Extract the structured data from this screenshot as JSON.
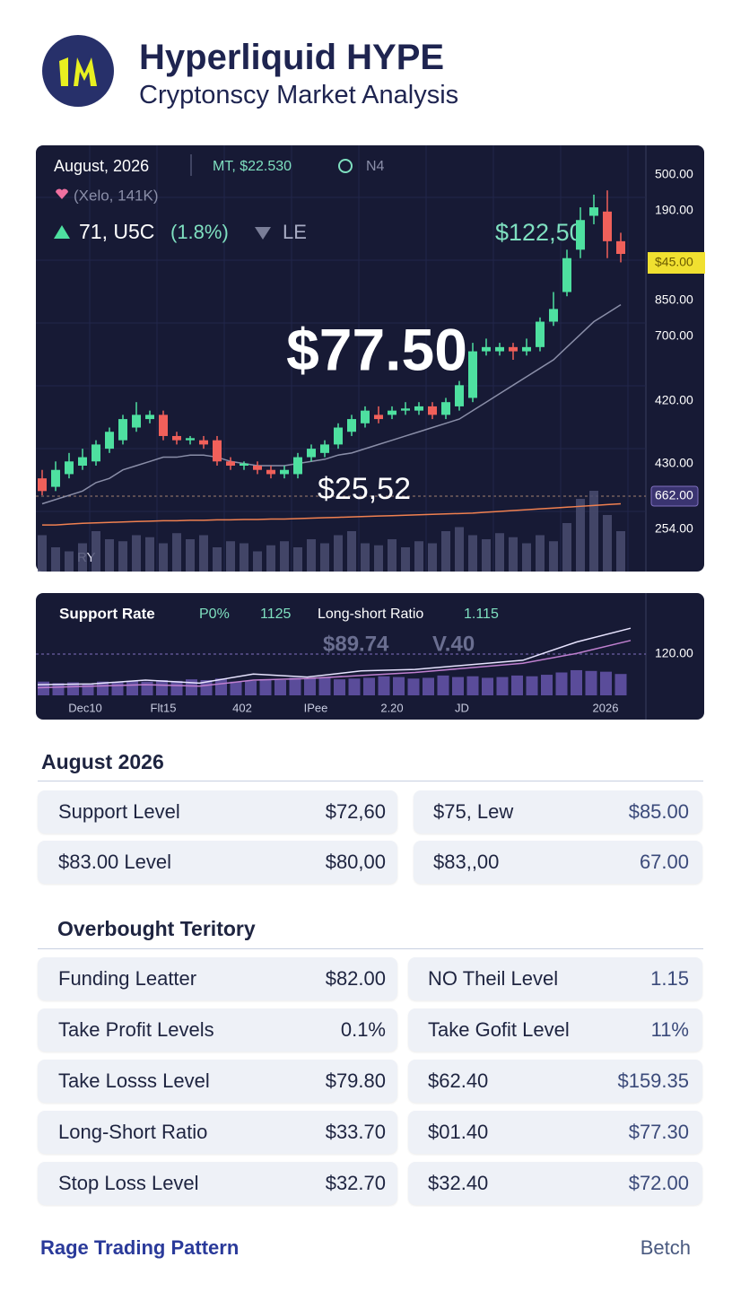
{
  "header": {
    "title": "Hyperliquid HYPE",
    "subtitle": "Cryptonscy Market Analysis"
  },
  "main_chart": {
    "type": "candlestick",
    "date": "August, 2026",
    "ticker": "MT, $22.530",
    "tag": "N4",
    "meta": "(Xelo, 141K)",
    "change": "71, U5C",
    "change_pct": "(1.8%)",
    "change_tag": "LE",
    "price_high": "$122,50",
    "price": "$77.50",
    "price_low": "$25,52",
    "corner": "RY",
    "axis_labels": [
      "500.00",
      "190.00",
      "$45.00",
      "850.00",
      "700.00",
      "420.00",
      "430.00",
      "662.00",
      "254.00"
    ],
    "up_color": "#4ee0a0",
    "down_color": "#f0605a",
    "ma_color": "#8a8ea8",
    "ma2_color": "#f08050",
    "volume_color": "#4a4e70",
    "ylim": [
      0,
      100
    ],
    "candles": [
      {
        "o": 22,
        "c": 19,
        "h": 24,
        "l": 18
      },
      {
        "o": 20,
        "c": 24,
        "h": 26,
        "l": 19
      },
      {
        "o": 23,
        "c": 26,
        "h": 28,
        "l": 22
      },
      {
        "o": 25,
        "c": 27,
        "h": 29,
        "l": 24
      },
      {
        "o": 26,
        "c": 30,
        "h": 31,
        "l": 25
      },
      {
        "o": 29,
        "c": 33,
        "h": 34,
        "l": 28
      },
      {
        "o": 31,
        "c": 36,
        "h": 37,
        "l": 30
      },
      {
        "o": 34,
        "c": 37,
        "h": 40,
        "l": 33
      },
      {
        "o": 36,
        "c": 37,
        "h": 38,
        "l": 35
      },
      {
        "o": 37,
        "c": 32,
        "h": 38,
        "l": 31
      },
      {
        "o": 32,
        "c": 31,
        "h": 33,
        "l": 30
      },
      {
        "o": 31,
        "c": 31.5,
        "h": 32,
        "l": 30
      },
      {
        "o": 31,
        "c": 30,
        "h": 32,
        "l": 29
      },
      {
        "o": 31,
        "c": 26,
        "h": 32,
        "l": 25
      },
      {
        "o": 26,
        "c": 25,
        "h": 27,
        "l": 24
      },
      {
        "o": 25,
        "c": 25.5,
        "h": 26,
        "l": 24
      },
      {
        "o": 25,
        "c": 24,
        "h": 26,
        "l": 23
      },
      {
        "o": 24,
        "c": 23,
        "h": 25,
        "l": 22
      },
      {
        "o": 23,
        "c": 24,
        "h": 25,
        "l": 22
      },
      {
        "o": 23,
        "c": 27,
        "h": 28,
        "l": 22
      },
      {
        "o": 27,
        "c": 29,
        "h": 30,
        "l": 26
      },
      {
        "o": 28,
        "c": 30,
        "h": 31,
        "l": 27
      },
      {
        "o": 30,
        "c": 34,
        "h": 35,
        "l": 29
      },
      {
        "o": 33,
        "c": 36,
        "h": 37,
        "l": 32
      },
      {
        "o": 35,
        "c": 38,
        "h": 39,
        "l": 34
      },
      {
        "o": 37,
        "c": 36,
        "h": 39,
        "l": 35
      },
      {
        "o": 37,
        "c": 38,
        "h": 39,
        "l": 36
      },
      {
        "o": 38,
        "c": 38.5,
        "h": 40,
        "l": 37
      },
      {
        "o": 38,
        "c": 39,
        "h": 40,
        "l": 37
      },
      {
        "o": 39,
        "c": 37,
        "h": 40,
        "l": 36
      },
      {
        "o": 37,
        "c": 40,
        "h": 41,
        "l": 36
      },
      {
        "o": 39,
        "c": 44,
        "h": 45,
        "l": 38
      },
      {
        "o": 41,
        "c": 52,
        "h": 54,
        "l": 40
      },
      {
        "o": 52,
        "c": 53,
        "h": 55,
        "l": 51
      },
      {
        "o": 52,
        "c": 53,
        "h": 54,
        "l": 51
      },
      {
        "o": 53,
        "c": 52,
        "h": 54,
        "l": 50
      },
      {
        "o": 52,
        "c": 53,
        "h": 55,
        "l": 51
      },
      {
        "o": 53,
        "c": 59,
        "h": 60,
        "l": 52
      },
      {
        "o": 59,
        "c": 62,
        "h": 66,
        "l": 58
      },
      {
        "o": 66,
        "c": 74,
        "h": 76,
        "l": 65
      },
      {
        "o": 76,
        "c": 83,
        "h": 86,
        "l": 74
      },
      {
        "o": 84,
        "c": 86,
        "h": 89,
        "l": 82
      },
      {
        "o": 85,
        "c": 78,
        "h": 90,
        "l": 74
      },
      {
        "o": 78,
        "c": 75,
        "h": 80,
        "l": 73
      }
    ],
    "ma": [
      16,
      17,
      18,
      19,
      21,
      22,
      24,
      25,
      26,
      27,
      27,
      27.5,
      27.5,
      27,
      26,
      25.5,
      25,
      25,
      25,
      25.5,
      26,
      26.5,
      27.5,
      28,
      29,
      30,
      31,
      32,
      33,
      34,
      35,
      36,
      38,
      40,
      42,
      44,
      46,
      48,
      50,
      53,
      56,
      59,
      61,
      63
    ],
    "ma2": [
      11,
      11,
      11.2,
      11.4,
      11.5,
      11.6,
      11.7,
      11.8,
      11.9,
      12,
      12,
      12.1,
      12.1,
      12.2,
      12.2,
      12.3,
      12.3,
      12.4,
      12.4,
      12.5,
      12.6,
      12.7,
      12.8,
      12.9,
      13,
      13.1,
      13.2,
      13.3,
      13.4,
      13.5,
      13.6,
      13.7,
      13.8,
      14,
      14.2,
      14.4,
      14.6,
      14.8,
      15,
      15.2,
      15.4,
      15.6,
      15.8,
      16
    ],
    "volume_ylim": [
      0,
      40
    ],
    "volume": [
      18,
      12,
      10,
      14,
      20,
      16,
      15,
      18,
      17,
      14,
      19,
      16,
      18,
      12,
      15,
      14,
      10,
      13,
      15,
      12,
      16,
      14,
      18,
      20,
      14,
      13,
      16,
      12,
      15,
      14,
      20,
      22,
      18,
      16,
      19,
      17,
      14,
      18,
      15,
      24,
      36,
      40,
      28,
      20
    ]
  },
  "indicator_chart": {
    "type": "line",
    "support_label": "Support Rate",
    "support_value": "P0%",
    "support_count": "1125",
    "ratio_label": "Long-short Ratio",
    "ratio_value": "1.115",
    "overlay": [
      "$89.74",
      "V.40"
    ],
    "axis_label": "120.00",
    "x_labels": [
      "Dec10",
      "Flt15",
      "402",
      "IPee",
      "2.20",
      "JD",
      "2026"
    ],
    "ylim": [
      0,
      100
    ],
    "bar_color": "#5a4c9a",
    "bars": [
      18,
      16,
      17,
      15,
      18,
      17,
      19,
      18,
      20,
      19,
      21,
      20,
      22,
      18,
      19,
      21,
      20,
      23,
      22,
      24,
      21,
      22,
      23,
      25,
      24,
      22,
      23,
      26,
      24,
      25,
      23,
      24,
      26,
      25,
      27,
      30,
      33,
      32,
      31,
      28
    ],
    "lines": [
      {
        "color": "#e8e4ff",
        "values": [
          14,
          15,
          20,
          16,
          28,
          24,
          32,
          34,
          40,
          46,
          70,
          88
        ]
      },
      {
        "color": "#c080d0",
        "values": [
          10,
          12,
          14,
          12,
          20,
          22,
          26,
          30,
          36,
          42,
          55,
          72
        ]
      }
    ]
  },
  "tables": [
    {
      "title": "August 2026",
      "rows": [
        [
          "Support Level",
          "$72,60",
          "$75, Lew",
          "$85.00"
        ],
        [
          "$83.00 Level",
          "$80,00",
          "$83,,00",
          "67.00"
        ]
      ]
    },
    {
      "title": "Overbought Teritory",
      "rows": [
        [
          "Funding Leatter",
          "$82.00",
          "NO Theil Level",
          "1.15"
        ],
        [
          "Take Profit Levels",
          "0.1%",
          "Take Gofit Level",
          "11%"
        ],
        [
          "Take Losss Level",
          "$79.80",
          "$62.40",
          "$159.35"
        ],
        [
          "Long-Short Ratio",
          "$33.70",
          "$01.40",
          "$77.30"
        ],
        [
          "Stop Loss Level",
          "$32.70",
          "$32.40",
          "$72.00"
        ]
      ]
    }
  ],
  "footer": {
    "left": "Rage Trading Pattern",
    "right": "Betch"
  }
}
